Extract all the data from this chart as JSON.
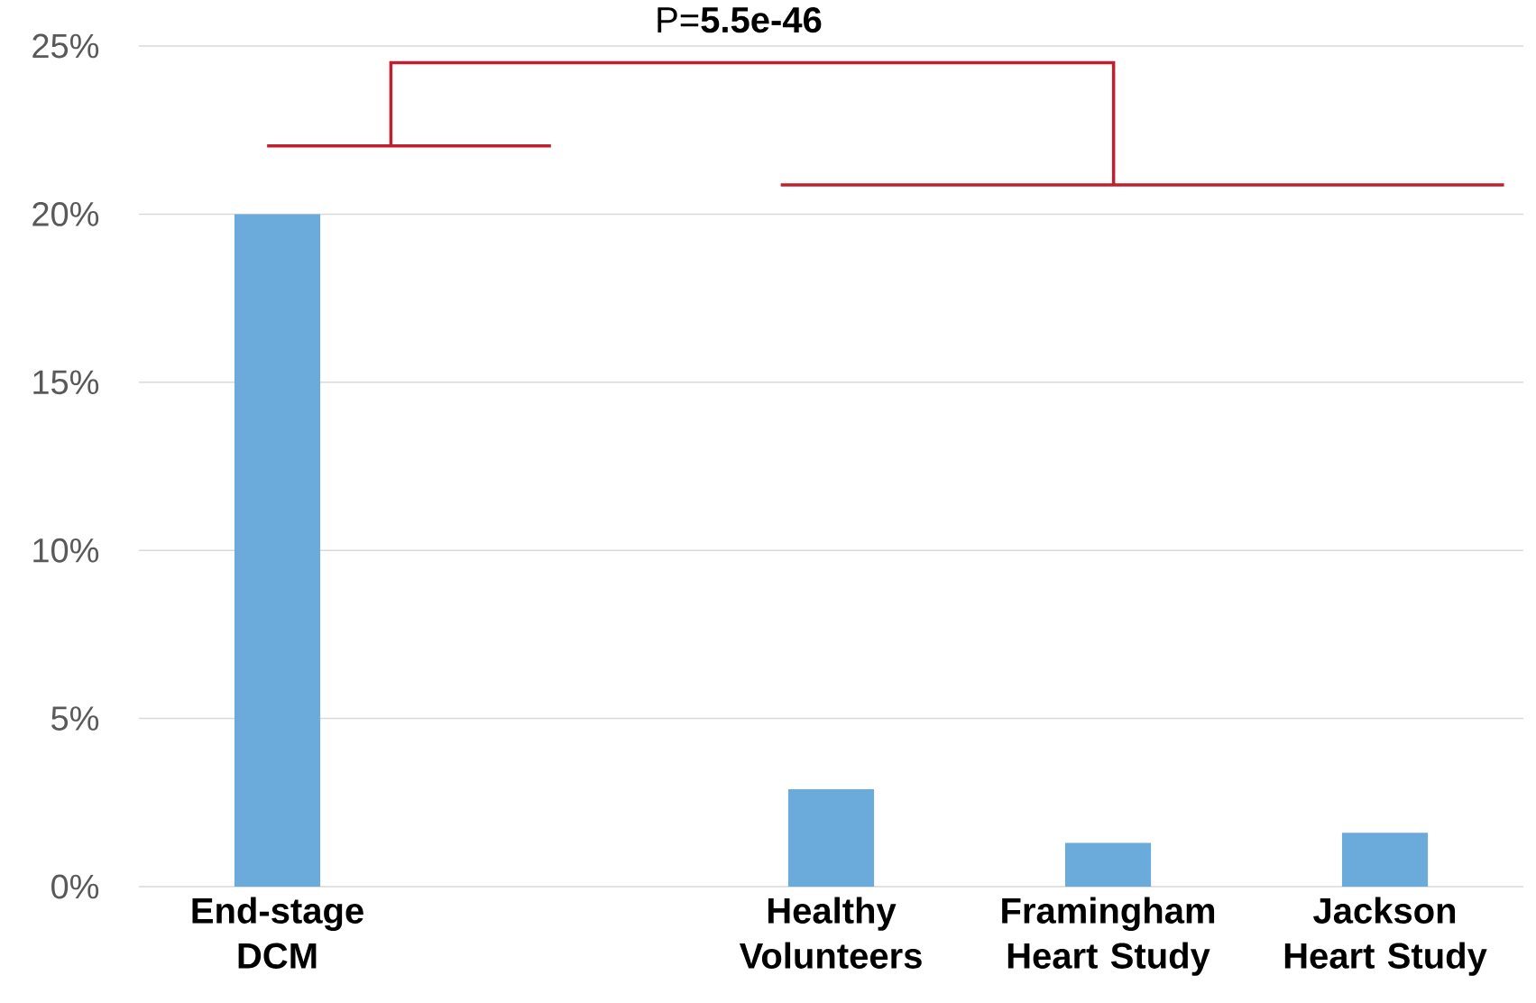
{
  "chart_data": {
    "type": "bar",
    "categories": [
      "End-stage DCM",
      null,
      "Healthy Volunteers",
      "Framingham Heart Study",
      "Jackson Heart Study"
    ],
    "values": [
      20,
      null,
      2.9,
      1.3,
      1.6
    ],
    "color": "#6aabdc",
    "ylim": [
      0,
      25
    ],
    "yticks": [
      {
        "value": 0,
        "label": "0%"
      },
      {
        "value": 5,
        "label": "5%"
      },
      {
        "value": 10,
        "label": "10%"
      },
      {
        "value": 15,
        "label": "15%"
      },
      {
        "value": 20,
        "label": "20%"
      },
      {
        "value": 25,
        "label": "25%"
      }
    ],
    "grid": "y",
    "annotations": [
      "P=**5.5e-46**"
    ]
  }
}
